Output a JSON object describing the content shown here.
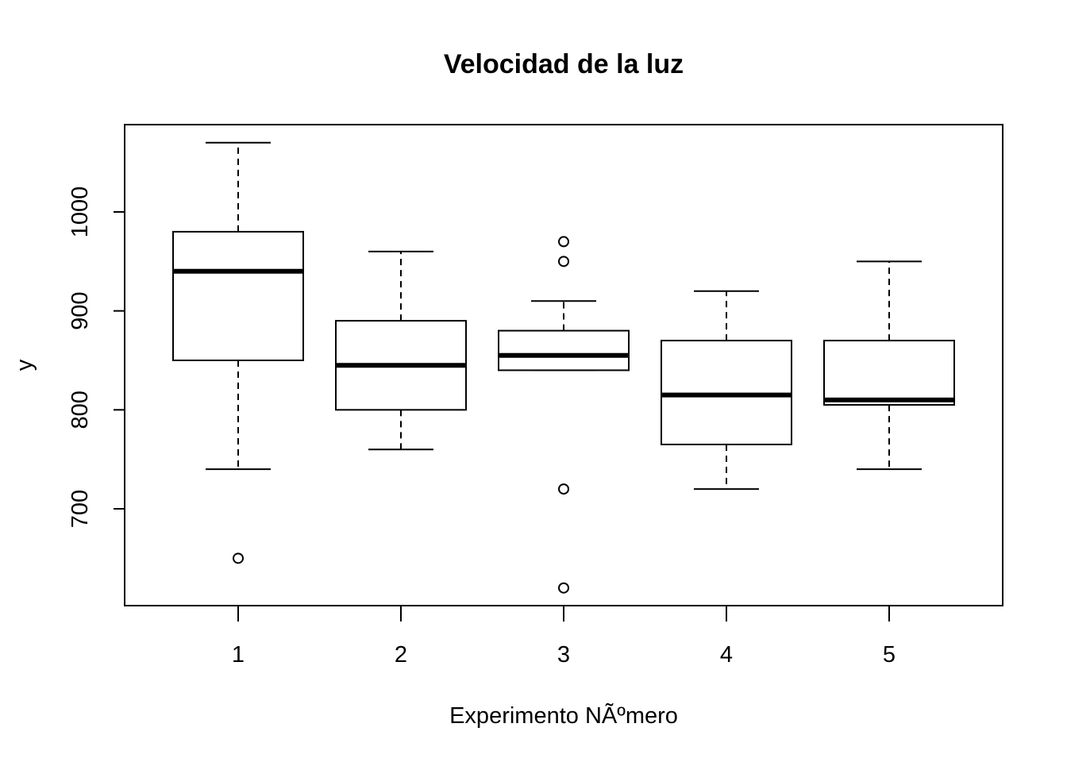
{
  "chart_data": {
    "type": "boxplot",
    "title": "Velocidad de la luz",
    "xlabel": "Experimento NÃºmero",
    "ylabel": "y",
    "categories": [
      "1",
      "2",
      "3",
      "4",
      "5"
    ],
    "y_ticks": [
      700,
      800,
      900,
      1000
    ],
    "ylim": [
      605,
      1090
    ],
    "grid": false,
    "boxes": [
      {
        "category": "1",
        "whisker_low": 740,
        "q1": 850,
        "median": 940,
        "q3": 980,
        "whisker_high": 1070,
        "outliers": [
          650
        ]
      },
      {
        "category": "2",
        "whisker_low": 760,
        "q1": 800,
        "median": 845,
        "q3": 890,
        "whisker_high": 960,
        "outliers": []
      },
      {
        "category": "3",
        "whisker_low": 840,
        "q1": 840,
        "median": 855,
        "q3": 880,
        "whisker_high": 910,
        "outliers": [
          970,
          950,
          720,
          620
        ]
      },
      {
        "category": "4",
        "whisker_low": 720,
        "q1": 765,
        "median": 815,
        "q3": 870,
        "whisker_high": 920,
        "outliers": []
      },
      {
        "category": "5",
        "whisker_low": 740,
        "q1": 805,
        "median": 810,
        "q3": 870,
        "whisker_high": 950,
        "outliers": []
      }
    ]
  }
}
